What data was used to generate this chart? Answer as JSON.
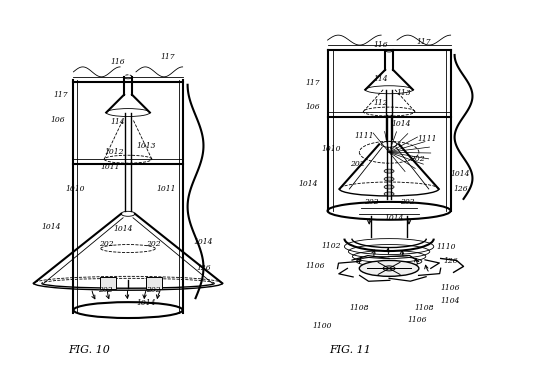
{
  "background_color": "#ffffff",
  "fig_width": 5.34,
  "fig_height": 3.74,
  "dpi": 100,
  "line_color": "#000000",
  "text_color": "#000000",
  "fig10_label": "FIG. 10",
  "fig11_label": "FIG. 11"
}
